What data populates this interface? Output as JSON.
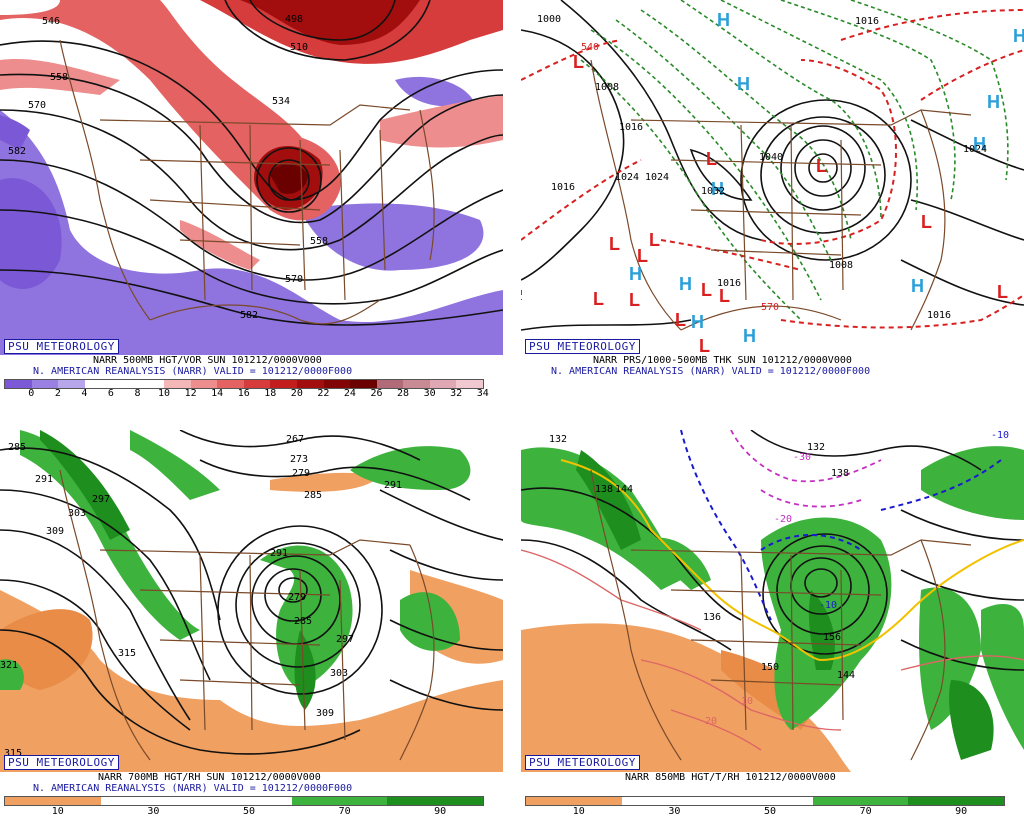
{
  "badge": "PSU METEOROLOGY",
  "panels": {
    "p1": {
      "caption1": "NARR 500MB HGT/VOR SUN 101212/0000V000",
      "caption2": "N. AMERICAN REANALYSIS (NARR) VALID = 101212/0000F000",
      "scale_ticks": [
        "0",
        "2",
        "4",
        "6",
        "8",
        "10",
        "12",
        "14",
        "16",
        "18",
        "20",
        "22",
        "24",
        "26",
        "28",
        "30",
        "32",
        "34"
      ],
      "scale_colors": [
        "#7b58d6",
        "#9a80e2",
        "#b7a6ec",
        "#ffffff",
        "#ffffff",
        "#ffffff",
        "#f4b7b7",
        "#ee8d8d",
        "#e46262",
        "#d63c3c",
        "#c21e1e",
        "#a20e0e",
        "#820505",
        "#6a0000",
        "#b06a78",
        "#c98a94",
        "#e0a8b2",
        "#f2c8d0"
      ],
      "labels": [
        "498",
        "510",
        "534",
        "546",
        "558",
        "570",
        "582",
        "558",
        "570",
        "582",
        "534"
      ]
    },
    "p2": {
      "caption1": "NARR PRS/1000-500MB THK SUN 101212/0000V000",
      "caption2": "N. AMERICAN REANALYSIS (NARR) VALID = 101212/0000F000",
      "labels": [
        "1000",
        "1016",
        "1024",
        "1032",
        "1008",
        "1016",
        "1024",
        "1016",
        "1040",
        "1008",
        "1016",
        "1016",
        "1024",
        "540",
        "570"
      ]
    },
    "p3": {
      "caption1": "NARR 700MB HGT/RH SUN 101212/0000V000",
      "caption2": "N. AMERICAN REANALYSIS (NARR) VALID = 101212/0000F000",
      "scale_ticks": [
        "10",
        "30",
        "50",
        "70",
        "90"
      ],
      "labels": [
        "285",
        "291",
        "297",
        "303",
        "309",
        "315",
        "321",
        "315",
        "267",
        "273",
        "279",
        "285",
        "291",
        "291",
        "279",
        "285",
        "297",
        "303",
        "309"
      ]
    },
    "p4": {
      "caption1": "NARR 850MB HGT/T/RH 101212/0000V000",
      "scale_ticks": [
        "10",
        "30",
        "50",
        "70",
        "90"
      ],
      "labels": [
        "132",
        "138",
        "144",
        "132",
        "138",
        "-30",
        "-20",
        "-10",
        "-10",
        "136",
        "150",
        "144",
        "156",
        "10",
        "20"
      ]
    }
  }
}
